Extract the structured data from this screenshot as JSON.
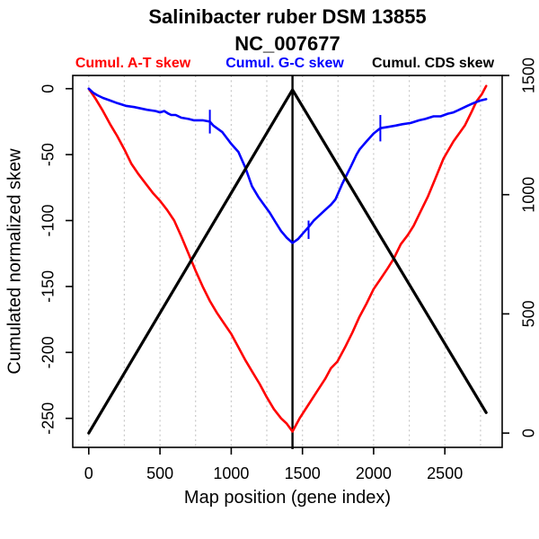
{
  "chart_data": {
    "type": "line",
    "title": "Salinibacter ruber DSM 13855",
    "subtitle": "NC_007677",
    "xlabel": "Map position (gene index)",
    "ylabel": "Cumulated normalized skew",
    "xlim": [
      -112,
      2902
    ],
    "ylim_left": [
      -272,
      10
    ],
    "ylim_right": [
      -60,
      1500
    ],
    "x_ticks": [
      0,
      500,
      1000,
      1500,
      2000,
      2500
    ],
    "y_left_ticks": [
      0,
      -50,
      -100,
      -150,
      -200,
      -250
    ],
    "y_right_ticks": [
      0,
      500,
      1000,
      1500
    ],
    "grid_x": [
      0,
      250,
      500,
      750,
      1000,
      1250,
      1500,
      1750,
      2000,
      2250,
      2500,
      2750
    ],
    "vline_x": 1430,
    "colors": {
      "at_skew": "#ff0000",
      "gc_skew": "#0000ff",
      "cds_skew": "#000000",
      "grid": "#c8c8c8",
      "axis": "#000000",
      "background": "#ffffff"
    },
    "markers": [
      {
        "x": 850,
        "y": -25,
        "half": 9
      },
      {
        "x": 1543,
        "y": -107,
        "half": 7
      },
      {
        "x": 2047,
        "y": -30,
        "half": 10
      }
    ],
    "series": [
      {
        "name": "Cumul. A-T skew",
        "color": "#ff0000",
        "axis": "left",
        "points": [
          [
            0,
            0
          ],
          [
            50,
            -8
          ],
          [
            100,
            -17
          ],
          [
            150,
            -27
          ],
          [
            200,
            -36
          ],
          [
            250,
            -46
          ],
          [
            300,
            -57
          ],
          [
            350,
            -65
          ],
          [
            400,
            -72
          ],
          [
            450,
            -79
          ],
          [
            500,
            -85
          ],
          [
            550,
            -92
          ],
          [
            600,
            -100
          ],
          [
            650,
            -112
          ],
          [
            700,
            -125
          ],
          [
            750,
            -138
          ],
          [
            800,
            -150
          ],
          [
            850,
            -161
          ],
          [
            900,
            -170
          ],
          [
            950,
            -178
          ],
          [
            1000,
            -186
          ],
          [
            1050,
            -196
          ],
          [
            1100,
            -206
          ],
          [
            1150,
            -215
          ],
          [
            1200,
            -224
          ],
          [
            1250,
            -234
          ],
          [
            1300,
            -243
          ],
          [
            1350,
            -250
          ],
          [
            1390,
            -254
          ],
          [
            1430,
            -260
          ],
          [
            1480,
            -250
          ],
          [
            1540,
            -240
          ],
          [
            1600,
            -230
          ],
          [
            1660,
            -220
          ],
          [
            1700,
            -212
          ],
          [
            1745,
            -207
          ],
          [
            1800,
            -196
          ],
          [
            1850,
            -185
          ],
          [
            1900,
            -173
          ],
          [
            1950,
            -163
          ],
          [
            2000,
            -152
          ],
          [
            2050,
            -144
          ],
          [
            2100,
            -136
          ],
          [
            2140,
            -129
          ],
          [
            2190,
            -118
          ],
          [
            2240,
            -111
          ],
          [
            2280,
            -104
          ],
          [
            2330,
            -93
          ],
          [
            2380,
            -82
          ],
          [
            2430,
            -69
          ],
          [
            2490,
            -53
          ],
          [
            2560,
            -40
          ],
          [
            2640,
            -28
          ],
          [
            2690,
            -17
          ],
          [
            2720,
            -10
          ],
          [
            2760,
            -4
          ],
          [
            2790,
            2
          ]
        ]
      },
      {
        "name": "Cumul. G-C skew",
        "color": "#0000ff",
        "axis": "left",
        "points": [
          [
            0,
            0
          ],
          [
            30,
            -3
          ],
          [
            60,
            -5
          ],
          [
            100,
            -7
          ],
          [
            150,
            -9
          ],
          [
            200,
            -11
          ],
          [
            260,
            -13
          ],
          [
            320,
            -14
          ],
          [
            409,
            -16
          ],
          [
            470,
            -17
          ],
          [
            500,
            -18
          ],
          [
            530,
            -17
          ],
          [
            560,
            -19
          ],
          [
            579,
            -20
          ],
          [
            610,
            -20
          ],
          [
            650,
            -22
          ],
          [
            700,
            -23
          ],
          [
            737,
            -24
          ],
          [
            800,
            -24
          ],
          [
            850,
            -25
          ],
          [
            875,
            -28
          ],
          [
            938,
            -33
          ],
          [
            1001,
            -42
          ],
          [
            1051,
            -48
          ],
          [
            1100,
            -60
          ],
          [
            1146,
            -74
          ],
          [
            1190,
            -82
          ],
          [
            1230,
            -88
          ],
          [
            1270,
            -94
          ],
          [
            1310,
            -101
          ],
          [
            1350,
            -108
          ],
          [
            1390,
            -113
          ],
          [
            1430,
            -117
          ],
          [
            1470,
            -114
          ],
          [
            1510,
            -109
          ],
          [
            1543,
            -105
          ],
          [
            1580,
            -100
          ],
          [
            1620,
            -96
          ],
          [
            1660,
            -92
          ],
          [
            1700,
            -88
          ],
          [
            1732,
            -84
          ],
          [
            1780,
            -72
          ],
          [
            1840,
            -59
          ],
          [
            1880,
            -50
          ],
          [
            1902,
            -46
          ],
          [
            1950,
            -40
          ],
          [
            2000,
            -34
          ],
          [
            2047,
            -30
          ],
          [
            2100,
            -29
          ],
          [
            2154,
            -28
          ],
          [
            2200,
            -27
          ],
          [
            2260,
            -26
          ],
          [
            2320,
            -24
          ],
          [
            2362,
            -23
          ],
          [
            2420,
            -21
          ],
          [
            2470,
            -21
          ],
          [
            2520,
            -19
          ],
          [
            2560,
            -18
          ],
          [
            2600,
            -16
          ],
          [
            2658,
            -13
          ],
          [
            2700,
            -11
          ],
          [
            2750,
            -9
          ],
          [
            2790,
            -8
          ]
        ]
      },
      {
        "name": "Cumul. CDS skew",
        "color": "#000000",
        "axis": "right",
        "points": [
          [
            0,
            0
          ],
          [
            1430,
            1440
          ],
          [
            2790,
            86
          ]
        ]
      }
    ]
  }
}
